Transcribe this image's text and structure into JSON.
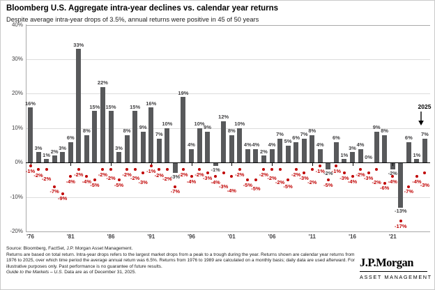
{
  "header": {
    "title": "Bloomberg U.S. Aggregate intra-year declines vs. calendar year returns",
    "subtitle": "Despite average intra-year drops of 3.5%, annual returns were positive in 45 of 50 years"
  },
  "chart_data": {
    "type": "bar",
    "title": "Bloomberg U.S. Aggregate intra-year declines vs. calendar year returns",
    "categories": [
      1976,
      1977,
      1978,
      1979,
      1980,
      1981,
      1982,
      1983,
      1984,
      1985,
      1986,
      1987,
      1988,
      1989,
      1990,
      1991,
      1992,
      1993,
      1994,
      1995,
      1996,
      1997,
      1998,
      1999,
      2000,
      2001,
      2002,
      2003,
      2004,
      2005,
      2006,
      2007,
      2008,
      2009,
      2010,
      2011,
      2012,
      2013,
      2014,
      2015,
      2016,
      2017,
      2018,
      2019,
      2020,
      2021,
      2022,
      2023,
      2024,
      2025
    ],
    "series": [
      {
        "name": "Calendar year return",
        "type": "bar",
        "values": [
          16,
          3,
          1,
          2,
          3,
          6,
          33,
          8,
          15,
          22,
          15,
          3,
          8,
          15,
          9,
          16,
          7,
          10,
          -3,
          19,
          4,
          10,
          9,
          -1,
          12,
          8,
          10,
          4,
          4,
          2,
          4,
          7,
          5,
          6,
          7,
          8,
          4,
          -2,
          6,
          1,
          3,
          4,
          0,
          9,
          8,
          -2,
          -13,
          6,
          1,
          7
        ]
      },
      {
        "name": "Intra-year decline",
        "type": "scatter",
        "values": [
          -1,
          -2,
          -2,
          -7,
          -9,
          -4,
          -2,
          -4,
          -5,
          -2,
          -2,
          -5,
          -2,
          -2,
          -3,
          -1,
          -2,
          -2,
          -7,
          -2,
          -4,
          -2,
          -3,
          -4,
          -3,
          -4,
          -2,
          -5,
          -5,
          -2,
          -2,
          -2,
          -5,
          -2,
          -3,
          -2,
          -1,
          -5,
          -1,
          -3,
          -4,
          -2,
          -3,
          -2,
          -6,
          -4,
          -17,
          -7,
          -4,
          -3
        ]
      }
    ],
    "ylim": [
      -20,
      40
    ],
    "yticks": [
      {
        "v": 40,
        "label": "40%"
      },
      {
        "v": 30,
        "label": "30%"
      },
      {
        "v": 20,
        "label": "20%"
      },
      {
        "v": 10,
        "label": "10%"
      },
      {
        "v": 0,
        "label": "0%"
      },
      {
        "v": -10,
        "label": "-10%"
      },
      {
        "v": -20,
        "label": "-20%"
      }
    ],
    "xticks": [
      {
        "index": 0,
        "label": "'76"
      },
      {
        "index": 5,
        "label": "'81"
      },
      {
        "index": 10,
        "label": "'86"
      },
      {
        "index": 15,
        "label": "'91"
      },
      {
        "index": 20,
        "label": "'96"
      },
      {
        "index": 25,
        "label": "'01"
      },
      {
        "index": 30,
        "label": "'06"
      },
      {
        "index": 35,
        "label": "'11"
      },
      {
        "index": 40,
        "label": "'16"
      },
      {
        "index": 45,
        "label": "'21"
      }
    ],
    "grid": true,
    "legend": "none",
    "annotation": {
      "label": "2025",
      "year": 2025
    },
    "colors": {
      "bar": "#58595B",
      "dot": "#C00000",
      "bar_label": "#414042",
      "dot_label": "#C00000",
      "gridline": "#DCDCDC",
      "frame": "#A9A9A9",
      "zero_axis": "#000000"
    }
  },
  "footer": {
    "source": "Source: Bloomberg, FactSet, J.P. Morgan Asset Management.",
    "disclaimer": "Returns are based on total return. Intra-year drops refers to the largest market drops from a peak to a trough during the year. Returns shown are calendar year returns from 1976 to 2025, over which time period the average annual return was 6.5%. Returns from 1976 to 1989 are calculated on a monthly basis; daily data are used afterward. For illustrative purposes only. Past performance is no guarantee of future results.",
    "gtm": "Guide to the Markets – U.S.",
    "asof": "Data are as of December 31, 2025."
  },
  "logo": {
    "name": "J.P.Morgan",
    "sub": "ASSET MANAGEMENT"
  }
}
